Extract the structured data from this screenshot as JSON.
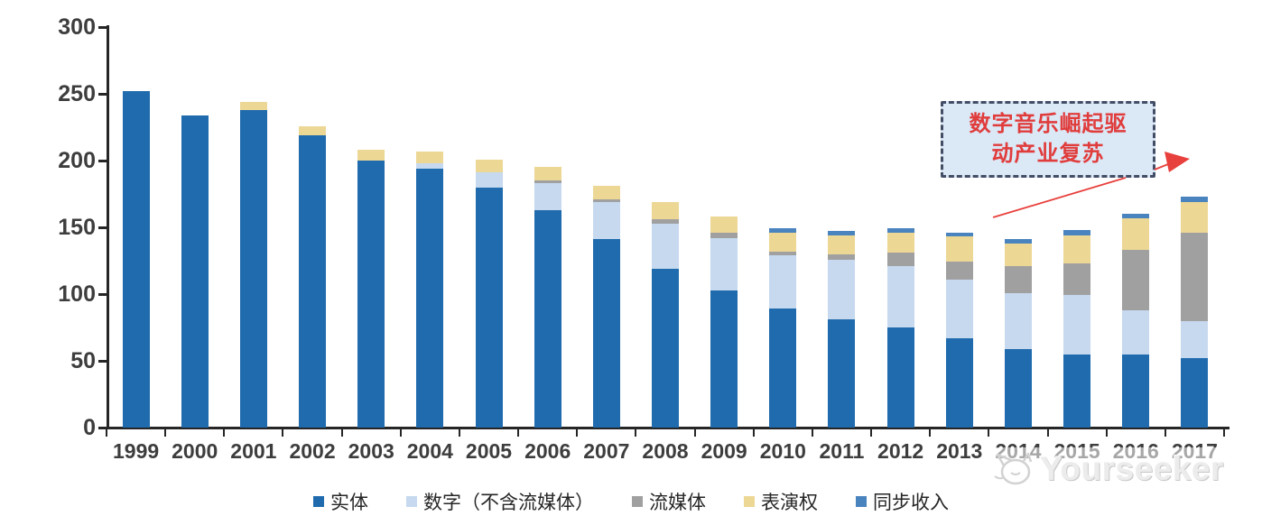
{
  "chart_data": {
    "type": "bar",
    "stacked": true,
    "title": "",
    "xlabel": "",
    "ylabel": "",
    "ylim": [
      0,
      300
    ],
    "yticks": [
      0,
      50,
      100,
      150,
      200,
      250,
      300
    ],
    "grid": false,
    "legend_position": "bottom",
    "categories": [
      "1999",
      "2000",
      "2001",
      "2002",
      "2003",
      "2004",
      "2005",
      "2006",
      "2007",
      "2008",
      "2009",
      "2010",
      "2011",
      "2012",
      "2013",
      "2014",
      "2015",
      "2016",
      "2017"
    ],
    "series": [
      {
        "name": "实体",
        "color": "#1f6bad",
        "values": [
          252,
          234,
          238,
          219,
          200,
          194,
          180,
          163,
          141,
          119,
          103,
          89,
          81,
          75,
          67,
          59,
          55,
          55,
          52
        ]
      },
      {
        "name": "数字（不含流媒体）",
        "color": "#c6d9ef",
        "values": [
          0,
          0,
          0,
          0,
          0,
          4,
          11,
          20,
          28,
          34,
          39,
          40,
          45,
          46,
          44,
          42,
          44,
          33,
          28
        ]
      },
      {
        "name": "流媒体",
        "color": "#a0a0a1",
        "values": [
          0,
          0,
          0,
          0,
          0,
          0,
          0,
          2,
          2,
          3,
          4,
          3,
          4,
          10,
          13,
          20,
          24,
          45,
          66
        ]
      },
      {
        "name": "表演权",
        "color": "#edd795",
        "values": [
          0,
          0,
          6,
          7,
          8,
          9,
          10,
          10,
          10,
          13,
          12,
          14,
          14,
          15,
          19,
          17,
          21,
          24,
          23
        ]
      },
      {
        "name": "同步收入",
        "color": "#4a84bf",
        "values": [
          0,
          0,
          0,
          0,
          0,
          0,
          0,
          0,
          0,
          0,
          0,
          3,
          3,
          3,
          3,
          3,
          4,
          3,
          4
        ]
      }
    ]
  },
  "annotation": {
    "line1": "数字音乐崛起驱",
    "line2": "动产业复苏",
    "text_color": "#e03c3c",
    "box_fill": "#dbe8f6",
    "border_color": "#434e66",
    "arrow_color": "#e8403c"
  },
  "axes": {
    "axis_color": "#262626",
    "label_color": "#3d3d3d"
  },
  "watermark": {
    "text": "Yourseeker"
  }
}
